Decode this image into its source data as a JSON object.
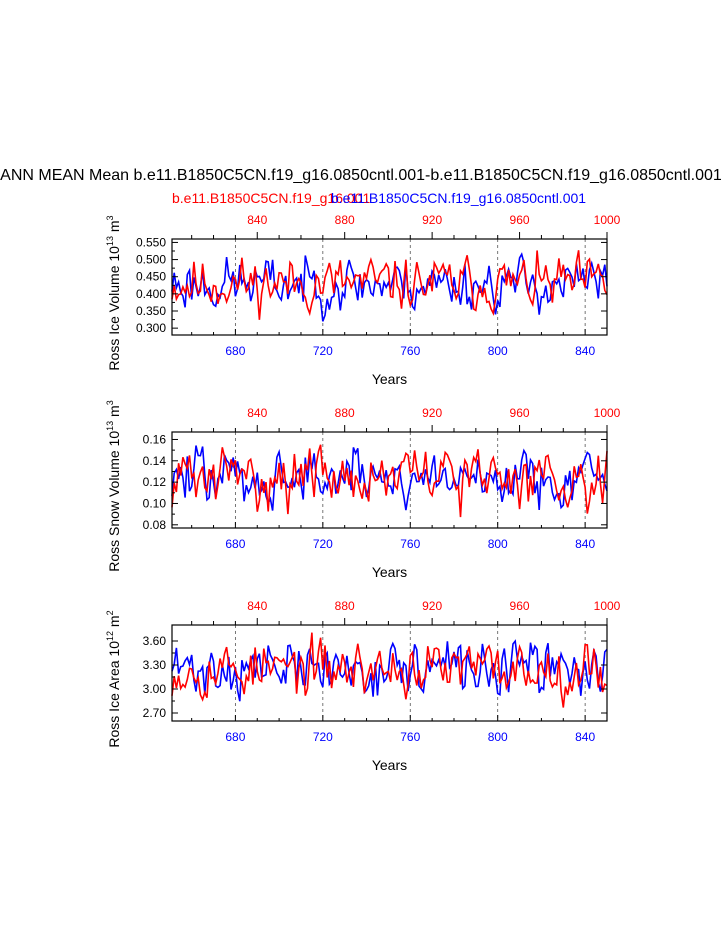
{
  "title": "ANN MEAN Mean b.e11.B1850C5CN.f19_g16.0850cntl.001-b.e11.B1850C5CN.f19_g16.0850cntl.001",
  "legend": {
    "series_a": "b.e11.B1850C5CN.f19_g16.001",
    "series_b": "b.e11.B1850C5CN.f19_g16.0850cntl.001"
  },
  "colors": {
    "series_a": "#ff0000",
    "series_b": "#0000ff",
    "axis": "#000000",
    "grid": "#555555"
  },
  "chart_data": [
    {
      "type": "line",
      "ylabel": "Ross Ice Volume",
      "ylabel_unit": "10",
      "ylabel_exp": "13",
      "ylabel_suffix": "m",
      "ylabel_suffix_exp": "3",
      "xlabel": "Years",
      "ylim": [
        0.28,
        0.56
      ],
      "yticks": [
        0.3,
        0.35,
        0.4,
        0.45,
        0.5,
        0.55
      ],
      "ytick_labels": [
        "0.300",
        "0.350",
        "0.400",
        "0.450",
        "0.500",
        "0.550"
      ],
      "xlim_bottom": [
        651,
        850
      ],
      "xticks_bottom": [
        680,
        720,
        760,
        800,
        840
      ],
      "xlim_top": [
        801,
        1000
      ],
      "xticks_top": [
        840,
        880,
        920,
        960,
        1000
      ],
      "mean": 0.43,
      "amp": 0.045,
      "min": 0.295,
      "max": 0.555,
      "seed_a": 11,
      "seed_b": 23
    },
    {
      "type": "line",
      "ylabel": "Ross Snow Volume",
      "ylabel_unit": "10",
      "ylabel_exp": "13",
      "ylabel_suffix": "m",
      "ylabel_suffix_exp": "3",
      "xlabel": "Years",
      "ylim": [
        0.077,
        0.167
      ],
      "yticks": [
        0.08,
        0.1,
        0.12,
        0.14,
        0.16
      ],
      "ytick_labels": [
        "0.08",
        "0.10",
        "0.12",
        "0.14",
        "0.16"
      ],
      "xlim_bottom": [
        651,
        850
      ],
      "xticks_bottom": [
        680,
        720,
        760,
        800,
        840
      ],
      "xlim_top": [
        801,
        1000
      ],
      "xticks_top": [
        840,
        880,
        920,
        960,
        1000
      ],
      "mean": 0.125,
      "amp": 0.016,
      "min": 0.08,
      "max": 0.165,
      "seed_a": 31,
      "seed_b": 47
    },
    {
      "type": "line",
      "ylabel": "Ross Ice Area",
      "ylabel_unit": "10",
      "ylabel_exp": "12",
      "ylabel_suffix": "m",
      "ylabel_suffix_exp": "2",
      "xlabel": "Years",
      "ylim": [
        2.6,
        3.8
      ],
      "yticks": [
        2.7,
        3.0,
        3.3,
        3.6
      ],
      "ytick_labels": [
        "2.70",
        "3.00",
        "3.30",
        "3.60"
      ],
      "xlim_bottom": [
        651,
        850
      ],
      "xticks_bottom": [
        680,
        720,
        760,
        800,
        840
      ],
      "xlim_top": [
        801,
        1000
      ],
      "xticks_top": [
        840,
        880,
        920,
        960,
        1000
      ],
      "mean": 3.25,
      "amp": 0.2,
      "min": 2.65,
      "max": 3.78,
      "seed_a": 53,
      "seed_b": 71
    }
  ]
}
